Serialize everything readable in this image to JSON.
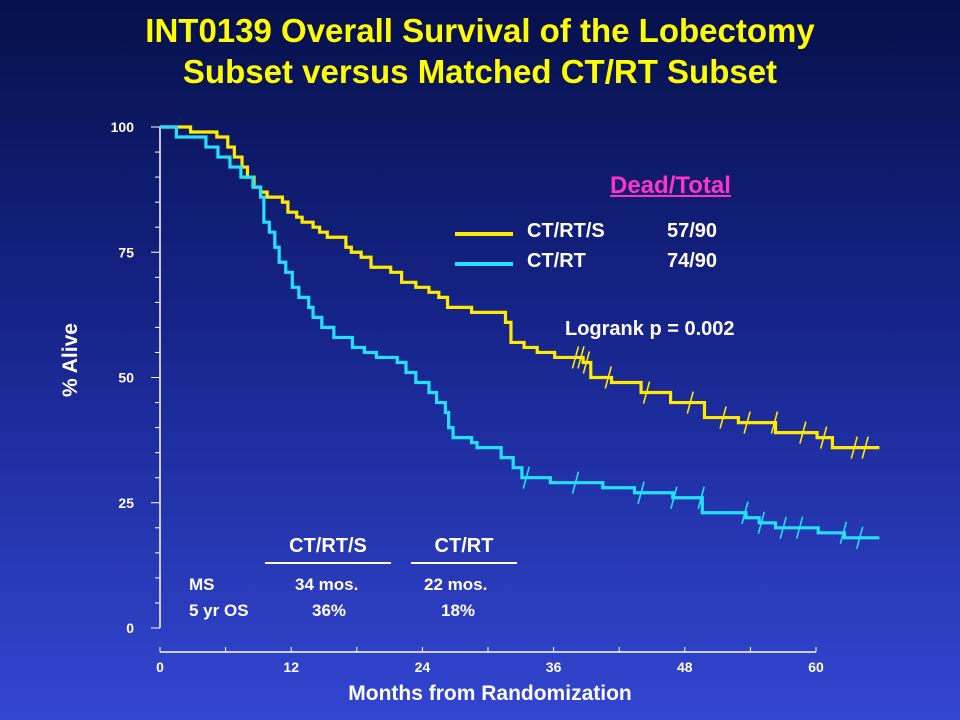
{
  "title": {
    "line1": "INT0139 Overall Survival of the Lobectomy",
    "line2": "Subset versus Matched CT/RT Subset"
  },
  "colors": {
    "ctrts": "#ffea00",
    "ctrt": "#22e0ff",
    "legend_title": "#ff33cc",
    "axis": "#ffffff"
  },
  "legend": {
    "title": "Dead/Total",
    "items": [
      {
        "name": "CT/RT/S",
        "count": "57/90"
      },
      {
        "name": "CT/RT",
        "count": "74/90"
      }
    ]
  },
  "logrank": "Logrank p = 0.002",
  "stats": {
    "headers": [
      "CT/RT/S",
      "CT/RT"
    ],
    "rows": [
      {
        "label": "MS",
        "values": [
          "34 mos.",
          "22 mos."
        ]
      },
      {
        "label": "5 yr OS",
        "values": [
          "36%",
          "18%"
        ]
      }
    ]
  },
  "chart_data": {
    "type": "line",
    "step": true,
    "title": "INT0139 Overall Survival of the Lobectomy Subset versus Matched CT/RT Subset",
    "xlabel": "Months from Randomization",
    "ylabel": "% Alive",
    "xlim": [
      0,
      60
    ],
    "ylim": [
      0,
      100
    ],
    "xticks": [
      0,
      12,
      24,
      36,
      48,
      60
    ],
    "yticks": [
      0,
      25,
      50,
      75,
      100
    ],
    "legend_position": "top-right",
    "series": [
      {
        "name": "CT/RT/S",
        "color": "#ffea00",
        "points": [
          [
            0,
            100
          ],
          [
            2.8,
            99
          ],
          [
            5.2,
            98
          ],
          [
            6.2,
            96
          ],
          [
            6.8,
            94
          ],
          [
            7.5,
            92
          ],
          [
            8,
            90
          ],
          [
            8.6,
            88
          ],
          [
            9.2,
            87
          ],
          [
            9.8,
            86
          ],
          [
            11.2,
            85
          ],
          [
            11.7,
            83
          ],
          [
            12.5,
            82
          ],
          [
            13,
            81
          ],
          [
            14,
            80
          ],
          [
            14.6,
            79
          ],
          [
            15.3,
            78
          ],
          [
            17,
            76
          ],
          [
            17.5,
            75
          ],
          [
            18.4,
            74
          ],
          [
            19.3,
            72
          ],
          [
            20.6,
            72
          ],
          [
            21.1,
            71
          ],
          [
            22.1,
            69
          ],
          [
            23.4,
            68
          ],
          [
            24.6,
            67
          ],
          [
            25.5,
            66
          ],
          [
            26.3,
            64
          ],
          [
            28.5,
            63
          ],
          [
            31.6,
            61
          ],
          [
            32.1,
            57
          ],
          [
            33.3,
            56
          ],
          [
            34.5,
            55
          ],
          [
            36.1,
            54
          ],
          [
            38.7,
            53
          ],
          [
            39.4,
            50
          ],
          [
            41.3,
            49
          ],
          [
            44,
            47
          ],
          [
            46.7,
            45
          ],
          [
            49.8,
            42
          ],
          [
            52.9,
            41
          ],
          [
            56.3,
            39
          ],
          [
            60.1,
            38
          ],
          [
            61.5,
            36
          ],
          [
            65.8,
            36
          ]
        ],
        "censor_x": [
          38,
          38.5,
          39,
          41,
          44.5,
          48.5,
          51.5,
          53.7,
          56.2,
          58.8,
          60.7,
          63.5,
          64.5
        ]
      },
      {
        "name": "CT/RT",
        "color": "#22e0ff",
        "points": [
          [
            0,
            100
          ],
          [
            1.5,
            98
          ],
          [
            4.2,
            96
          ],
          [
            5.3,
            94
          ],
          [
            6.4,
            92
          ],
          [
            7.4,
            90
          ],
          [
            8.5,
            88
          ],
          [
            9.2,
            86
          ],
          [
            9.5,
            81
          ],
          [
            10,
            79
          ],
          [
            10.5,
            76
          ],
          [
            10.9,
            73
          ],
          [
            11.5,
            71
          ],
          [
            12.1,
            68
          ],
          [
            12.7,
            66
          ],
          [
            13.6,
            64
          ],
          [
            14,
            62
          ],
          [
            14.8,
            60
          ],
          [
            15.9,
            58
          ],
          [
            17.6,
            56
          ],
          [
            18.7,
            55
          ],
          [
            19.8,
            54
          ],
          [
            21.7,
            53
          ],
          [
            22.5,
            51
          ],
          [
            23.4,
            49
          ],
          [
            24.6,
            47
          ],
          [
            25.3,
            45
          ],
          [
            26.1,
            43
          ],
          [
            26.4,
            40
          ],
          [
            26.8,
            38
          ],
          [
            28.5,
            37
          ],
          [
            29,
            36
          ],
          [
            31.2,
            34
          ],
          [
            32.3,
            32
          ],
          [
            33.1,
            30
          ],
          [
            35.7,
            29
          ],
          [
            40.5,
            28
          ],
          [
            43.4,
            27
          ],
          [
            46.9,
            26
          ],
          [
            49.6,
            23
          ],
          [
            53.6,
            22
          ],
          [
            54.8,
            21
          ],
          [
            56.3,
            20
          ],
          [
            60.2,
            19
          ],
          [
            62.6,
            18
          ],
          [
            65.8,
            18
          ]
        ],
        "censor_x": [
          33.5,
          38,
          44,
          47,
          49.5,
          53.5,
          55,
          57,
          58.5,
          62.5,
          64
        ]
      }
    ]
  }
}
